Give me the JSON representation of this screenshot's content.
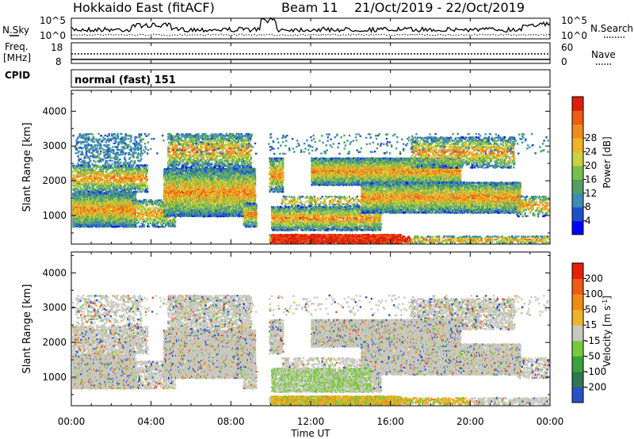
{
  "header": {
    "title": "Hokkaido East (fitACF)",
    "beam": "Beam 11",
    "date_range": "21/Oct/2019 - 22/Oct/2019"
  },
  "side_labels": {
    "nsky": "N.Sky",
    "nsearch": "N.Search",
    "freq": "Freq.",
    "freq_unit": "[MHz]",
    "nave": "Nave",
    "cpid": "CPID"
  },
  "noise_panel": {
    "left_ticks": [
      "10^5",
      "10^0"
    ],
    "right_ticks": [
      "10^5",
      "10^0"
    ]
  },
  "freq_panel": {
    "left_ticks": [
      "18",
      "8"
    ],
    "right_ticks": [
      "60",
      "0"
    ]
  },
  "cpid_text": "normal (fast) 151",
  "chart_data": [
    {
      "type": "heatmap",
      "name": "power",
      "ylabel": "Slant Range [km]",
      "y_ticks": [
        "1000",
        "2000",
        "3000",
        "4000"
      ],
      "colorbar_label": "Power [dB]",
      "colorbar_ticks": [
        "4",
        "8",
        "12",
        "16",
        "20",
        "24",
        "28"
      ],
      "colorscale": [
        "#0000ff",
        "#1e50c8",
        "#3c8cb4",
        "#50a064",
        "#78be50",
        "#c8d23c",
        "#f0b428",
        "#f08c1e",
        "#ef5a14",
        "#dc1e0a"
      ],
      "vmin": 0,
      "vmax": 30
    },
    {
      "type": "heatmap",
      "name": "velocity",
      "ylabel": "Slant Range [km]",
      "y_ticks": [
        "1000",
        "2000",
        "3000",
        "4000"
      ],
      "colorbar_label": "Velocity [m s",
      "colorbar_label_sup": "-1",
      "colorbar_label_end": "]",
      "colorbar_ticks": [
        "200",
        "100",
        "50",
        "15",
        "-15",
        "-50",
        "-100",
        "-200"
      ],
      "colorscale": [
        "#2850c8",
        "#2d7850",
        "#3ca03c",
        "#78c83c",
        "#c8c8c0",
        "#f0b428",
        "#f08c14",
        "#ef5a14",
        "#e61e0a"
      ],
      "gs_color": "#c8c8c0"
    }
  ],
  "x_axis": {
    "label": "Time UT",
    "ticks": [
      "00:00",
      "04:00",
      "08:00",
      "12:00",
      "16:00",
      "20:00",
      "00:00"
    ],
    "range_hours": [
      0,
      24
    ]
  }
}
